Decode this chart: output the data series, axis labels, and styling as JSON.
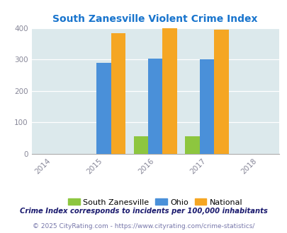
{
  "title": "South Zanesville Violent Crime Index",
  "title_color": "#1874CD",
  "years": [
    2014,
    2015,
    2016,
    2017,
    2018
  ],
  "bar_years": [
    2015,
    2016,
    2017
  ],
  "south_zanesville": [
    0,
    55,
    55
  ],
  "ohio": [
    290,
    302,
    300
  ],
  "national": [
    383,
    398,
    394
  ],
  "color_sz": "#8DC63F",
  "color_ohio": "#4A90D9",
  "color_national": "#F5A623",
  "bg_color": "#DCE9EC",
  "ylim": [
    0,
    400
  ],
  "yticks": [
    0,
    100,
    200,
    300,
    400
  ],
  "bar_width": 0.28,
  "legend_labels": [
    "South Zanesville",
    "Ohio",
    "National"
  ],
  "footnote1": "Crime Index corresponds to incidents per 100,000 inhabitants",
  "footnote2": "© 2025 CityRating.com - https://www.cityrating.com/crime-statistics/",
  "footnote1_color": "#1a1a6e",
  "footnote2_color": "#7777aa"
}
